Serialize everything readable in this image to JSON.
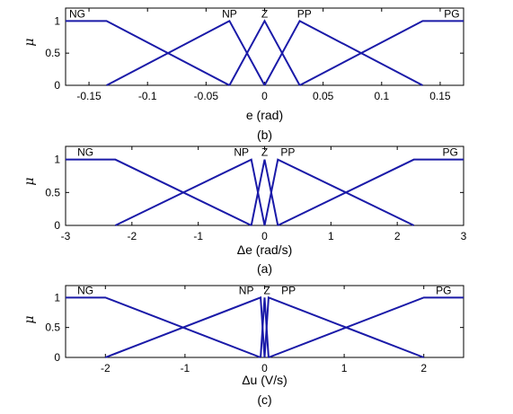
{
  "chart_data": [
    {
      "type": "line",
      "caption": "(b)",
      "xlabel": "e (rad)",
      "ylabel": "μ",
      "xlim": [
        -0.17,
        0.17
      ],
      "ylim": [
        0,
        1.2
      ],
      "xticks": [
        -0.15,
        -0.1,
        -0.05,
        0,
        0.05,
        0.1,
        0.15
      ],
      "xtick_labels": [
        "-0.15",
        "-0.1",
        "-0.05",
        "0",
        "0.05",
        "0.1",
        "0.15"
      ],
      "yticks": [
        0,
        0.5,
        1
      ],
      "ytick_labels": [
        "0",
        "0.5",
        "1"
      ],
      "grid": false,
      "line_color": "#1a1aa8",
      "series": [
        {
          "name": "NG",
          "x": [
            -0.17,
            -0.135,
            -0.03
          ],
          "y": [
            1,
            1,
            0
          ],
          "label_x": -0.16
        },
        {
          "name": "NP",
          "x": [
            -0.135,
            -0.03,
            0.0
          ],
          "y": [
            0,
            1,
            0
          ],
          "label_x": -0.03
        },
        {
          "name": "Z",
          "x": [
            -0.03,
            0.0,
            0.03
          ],
          "y": [
            0,
            1,
            0
          ],
          "label_x": 0.0
        },
        {
          "name": "PP",
          "x": [
            0.0,
            0.03,
            0.135
          ],
          "y": [
            0,
            1,
            0
          ],
          "label_x": 0.034
        },
        {
          "name": "PG",
          "x": [
            0.03,
            0.135,
            0.17
          ],
          "y": [
            0,
            1,
            1
          ],
          "label_x": 0.16
        }
      ]
    },
    {
      "type": "line",
      "caption": "(a)",
      "xlabel": "Δe (rad/s)",
      "ylabel": "μ",
      "xlim": [
        -3,
        3
      ],
      "ylim": [
        0,
        1.2
      ],
      "xticks": [
        -3,
        -2,
        -1,
        0,
        1,
        2,
        3
      ],
      "xtick_labels": [
        "-3",
        "-2",
        "-1",
        "0",
        "1",
        "2",
        "3"
      ],
      "yticks": [
        0,
        0.5,
        1
      ],
      "ytick_labels": [
        "0",
        "0.5",
        "1"
      ],
      "grid": false,
      "line_color": "#1a1aa8",
      "series": [
        {
          "name": "NG",
          "x": [
            -3,
            -2.25,
            -0.2
          ],
          "y": [
            1,
            1,
            0
          ],
          "label_x": -2.7
        },
        {
          "name": "NP",
          "x": [
            -2.25,
            -0.2,
            0.0
          ],
          "y": [
            0,
            1,
            0
          ],
          "label_x": -0.35
        },
        {
          "name": "Z",
          "x": [
            -0.2,
            0.0,
            0.2
          ],
          "y": [
            0,
            1,
            0
          ],
          "label_x": 0.0
        },
        {
          "name": "PP",
          "x": [
            0.0,
            0.2,
            2.25
          ],
          "y": [
            0,
            1,
            0
          ],
          "label_x": 0.35
        },
        {
          "name": "PG",
          "x": [
            0.2,
            2.25,
            3
          ],
          "y": [
            0,
            1,
            1
          ],
          "label_x": 2.8
        }
      ]
    },
    {
      "type": "line",
      "caption": "(c)",
      "xlabel": "Δu (V/s)",
      "ylabel": "μ",
      "xlim": [
        -2.5,
        2.5
      ],
      "ylim": [
        0,
        1.2
      ],
      "xticks": [
        -2,
        -1,
        0,
        1,
        2
      ],
      "xtick_labels": [
        "-2",
        "-1",
        "0",
        "1",
        "2"
      ],
      "yticks": [
        0,
        0.5,
        1
      ],
      "ytick_labels": [
        "0",
        "0.5",
        "1"
      ],
      "grid": false,
      "line_color": "#1a1aa8",
      "series": [
        {
          "name": "NG",
          "x": [
            -2.5,
            -2.0,
            -0.05
          ],
          "y": [
            1,
            1,
            0
          ],
          "label_x": -2.25
        },
        {
          "name": "NP",
          "x": [
            -2.0,
            -0.05,
            0.0
          ],
          "y": [
            0,
            1,
            0
          ],
          "label_x": -0.23
        },
        {
          "name": "Z",
          "x": [
            -0.05,
            0.0,
            0.05
          ],
          "y": [
            0,
            1,
            0
          ],
          "label_x": 0.03
        },
        {
          "name": "PP",
          "x": [
            0.0,
            0.05,
            2.0
          ],
          "y": [
            0,
            1,
            0
          ],
          "label_x": 0.3
        },
        {
          "name": "PG",
          "x": [
            0.05,
            2.0,
            2.5
          ],
          "y": [
            0,
            1,
            1
          ],
          "label_x": 2.25
        }
      ]
    }
  ]
}
